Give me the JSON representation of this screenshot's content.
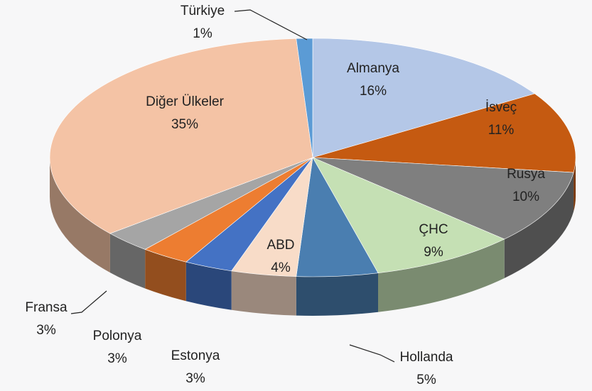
{
  "chart_data": {
    "type": "pie3d",
    "categories": [
      "Almanya",
      "İsveç",
      "Rusya",
      "ÇHC",
      "Hollanda",
      "ABD",
      "Estonya",
      "Polonya",
      "Fransa",
      "Diğer Ülkeler",
      "Türkiye"
    ],
    "values": [
      16,
      11,
      10,
      9,
      5,
      4,
      3,
      3,
      3,
      35,
      1
    ],
    "value_labels": [
      "16%",
      "11%",
      "10%",
      "9%",
      "5%",
      "4%",
      "3%",
      "3%",
      "3%",
      "35%",
      "1%"
    ],
    "colors": [
      "#b4c7e7",
      "#c55a11",
      "#7f7f7f",
      "#c5e0b4",
      "#4a7eb0",
      "#f8dcc8",
      "#4472c4",
      "#ed7d31",
      "#a5a5a5",
      "#f4c3a5",
      "#5b9bd5"
    ]
  }
}
